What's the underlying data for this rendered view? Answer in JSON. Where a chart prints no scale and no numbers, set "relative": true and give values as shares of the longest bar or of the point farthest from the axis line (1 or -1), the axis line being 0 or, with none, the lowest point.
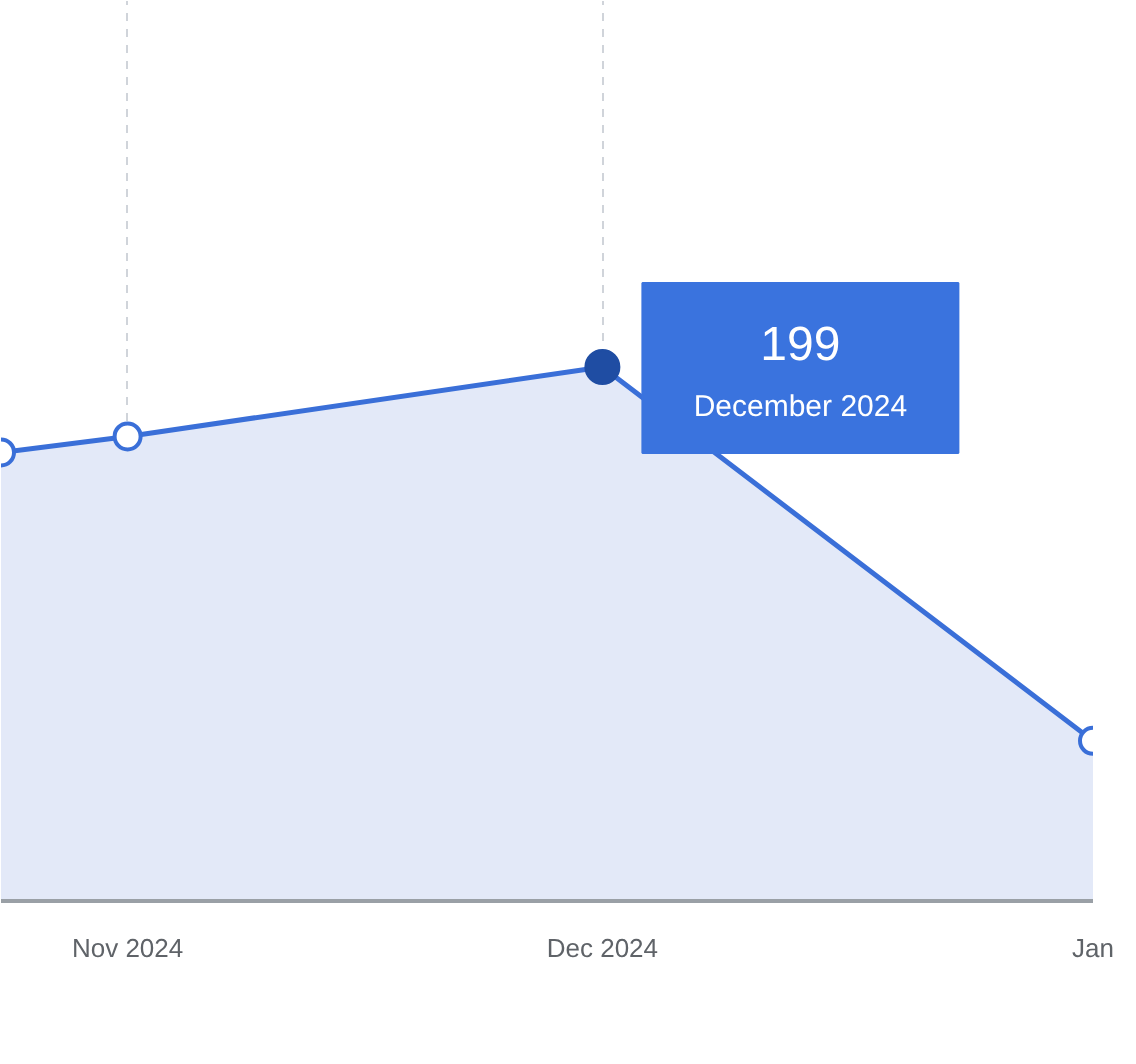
{
  "chart_data": {
    "type": "area",
    "relative": true,
    "x": [
      "2024-10-24",
      "2024-11-01",
      "2024-12-01",
      "2025-01-01"
    ],
    "series": [
      {
        "color": "#3a6fd8",
        "values": [
          0.84,
          0.87,
          1,
          0.3
        ]
      }
    ],
    "xlim": [
      "2024-10-24",
      "2025-01-01"
    ],
    "xticks": [
      {
        "value": "2024-11-01",
        "label": "Nov 2024"
      },
      {
        "value": "2024-12-01",
        "label": "Dec 2024"
      },
      {
        "value": "2025-01-01",
        "label": "Jan"
      }
    ],
    "grid": "x",
    "marker": "circle",
    "annotations": [
      "199",
      "December 2024"
    ]
  }
}
